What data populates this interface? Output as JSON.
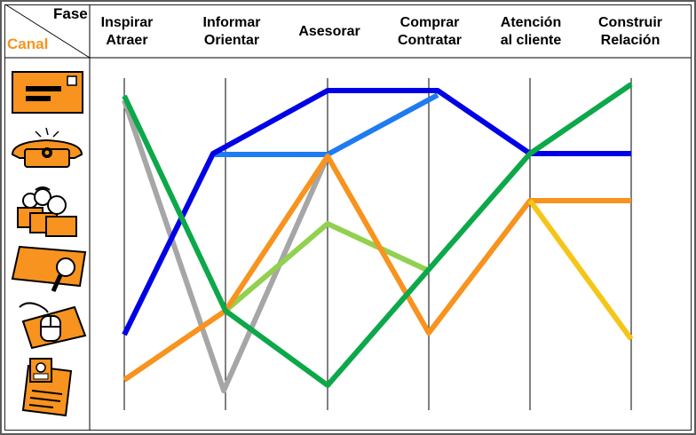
{
  "header": {
    "fase": "Fase",
    "canal": "Canal"
  },
  "phases": [
    {
      "label": "Inspirar\nAtraer"
    },
    {
      "label": "Informar\nOrientar"
    },
    {
      "label": "Asesorar"
    },
    {
      "label": "Comprar\nContratar"
    },
    {
      "label": "Atención\nal cliente"
    },
    {
      "label": "Construir\nRelación"
    }
  ],
  "channels": [
    "letter-icon",
    "telephone-icon",
    "sales-team-icon",
    "card-search-icon",
    "mouse-icon",
    "document-icon"
  ],
  "colors": {
    "orange": "#f7931e",
    "blue": "#0000e6",
    "light_blue": "#1e7bf0",
    "green": "#0ca84a",
    "light_green": "#92d050",
    "gray": "#a6a6a6",
    "yellow": "#f5c518"
  }
}
